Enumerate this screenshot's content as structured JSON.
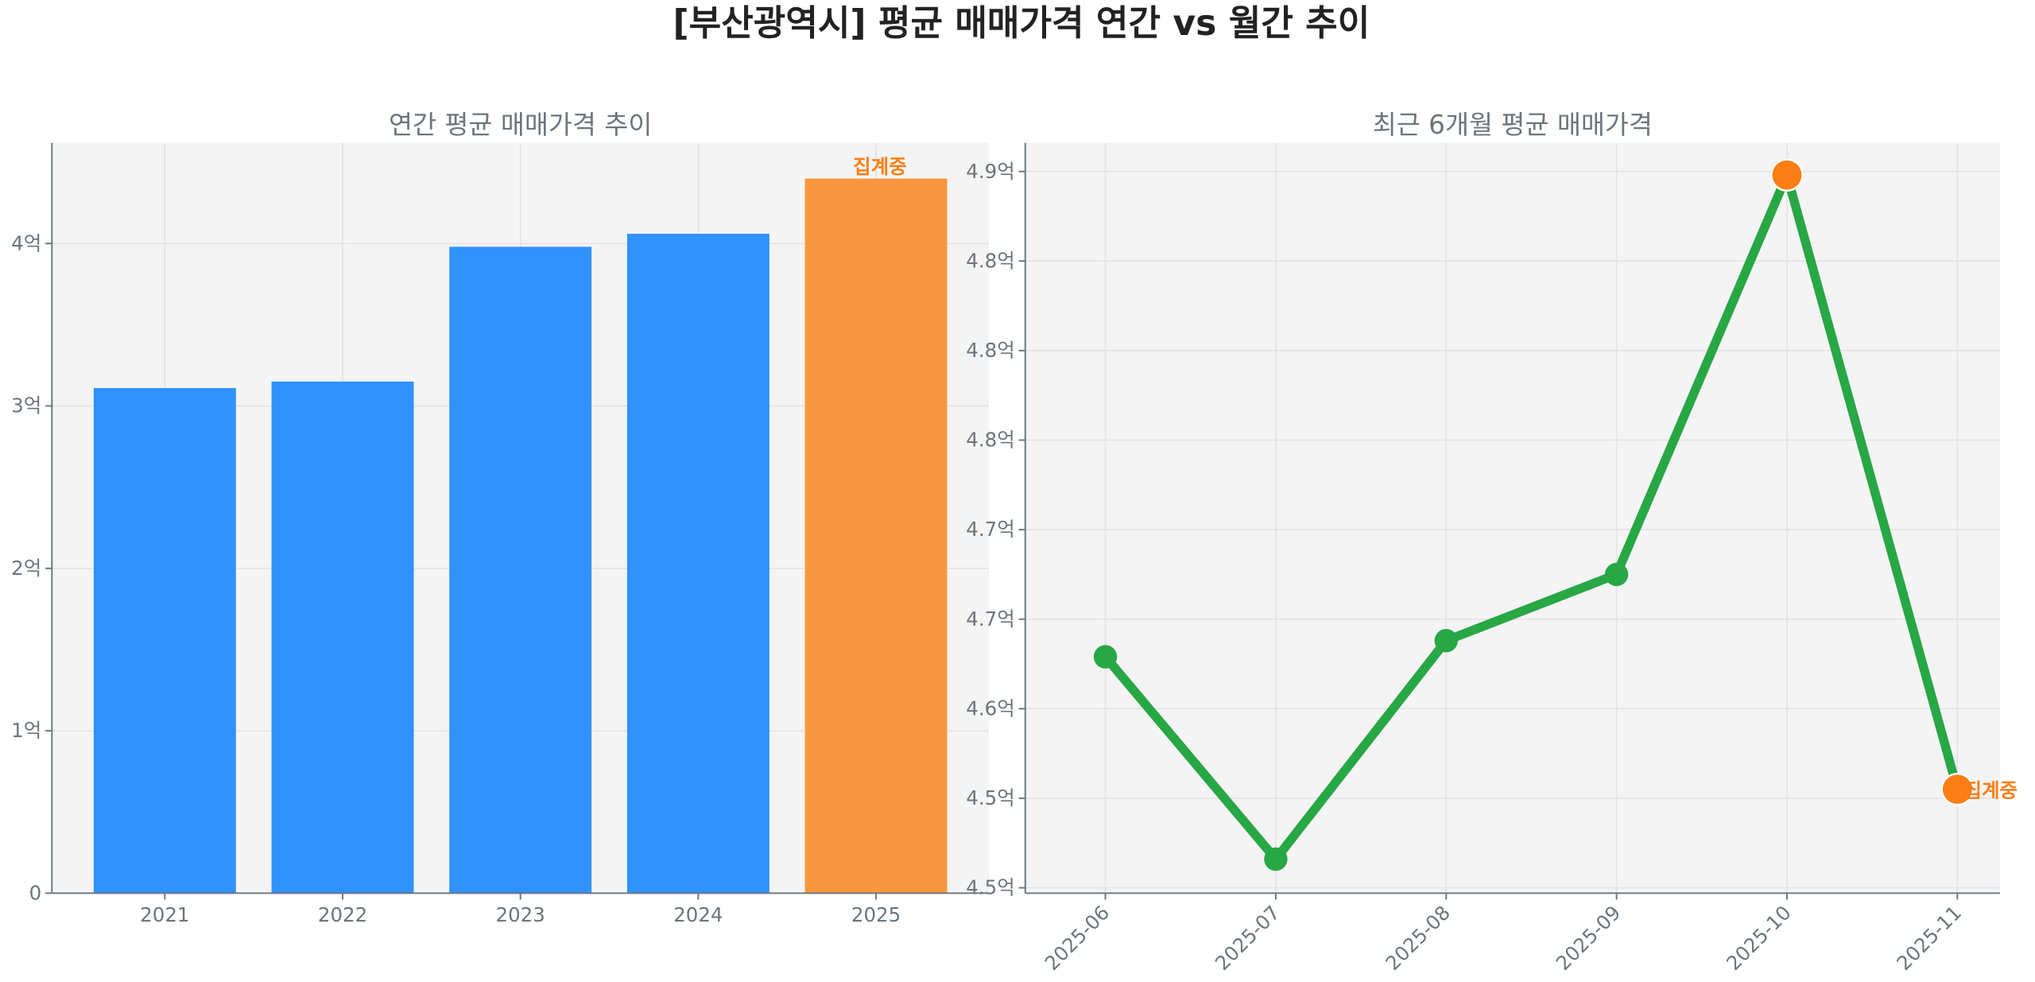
{
  "title": "[부산광역시] 평균 매매가격 연간 vs 월간 추이",
  "colors": {
    "bar": "#3192fc",
    "bar_partial": "#f99740",
    "line": "#28a745",
    "marker_highlight": "#fd7e14",
    "text": "#6c757d"
  },
  "chart_data": [
    {
      "type": "bar",
      "title": "연간 평균 매매가격 추이",
      "xlabel": "",
      "ylabel": "",
      "categories": [
        "2021",
        "2022",
        "2023",
        "2024",
        "2025"
      ],
      "values": [
        3.11,
        3.15,
        3.98,
        4.06,
        4.4
      ],
      "unit": "억",
      "ylim": [
        0,
        4.62
      ],
      "yticks": [
        0,
        1,
        2,
        3,
        4
      ],
      "ytick_labels": [
        "0",
        "1억",
        "2억",
        "3억",
        "4억"
      ],
      "partial_index": 4,
      "annotation": "집계중",
      "grid": true
    },
    {
      "type": "line",
      "title": "최근 6개월 평균 매매가격",
      "xlabel": "",
      "ylabel": "",
      "categories": [
        "2025-06",
        "2025-07",
        "2025-08",
        "2025-09",
        "2025-10",
        "2025-11"
      ],
      "values": [
        4.629,
        4.516,
        4.638,
        4.675,
        4.898,
        4.555
      ],
      "unit": "억",
      "ylim": [
        4.497,
        4.916
      ],
      "yticks": [
        4.5,
        4.55,
        4.6,
        4.65,
        4.7,
        4.75,
        4.8,
        4.85,
        4.9
      ],
      "ytick_labels": [
        "4.5억",
        "4.5억",
        "4.6억",
        "4.7억",
        "4.7억",
        "4.8억",
        "4.8억",
        "4.8억",
        "4.9억"
      ],
      "highlight_indices": [
        4,
        5
      ],
      "annotation": "집계중",
      "grid": true
    }
  ]
}
